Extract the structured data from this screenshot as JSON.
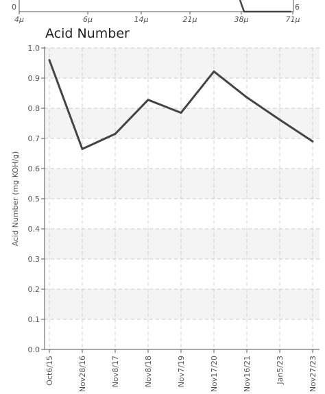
{
  "top_fragment": {
    "y_tick_label": "0",
    "right_tick_label": "6",
    "x_tick_labels": [
      "4μ",
      "6μ",
      "14μ",
      "21μ",
      "38μ",
      "71μ"
    ]
  },
  "chart_data": {
    "type": "line",
    "title": "Acid Number",
    "xlabel": "",
    "ylabel": "Acid Number (mg KOH/g)",
    "categories": [
      "Oct6/15",
      "Nov28/16",
      "Nov8/17",
      "Nov8/18",
      "Nov7/19",
      "Nov17/20",
      "Nov16/21",
      "Jan5/23",
      "Nov27/23"
    ],
    "series": [
      {
        "values": [
          0.96,
          0.665,
          0.715,
          0.828,
          0.785,
          0.922,
          0.836,
          0.762,
          0.69
        ]
      }
    ],
    "ylim": [
      0.0,
      1.0
    ],
    "yticks": [
      "0.0",
      "0.1",
      "0.2",
      "0.3",
      "0.4",
      "0.5",
      "0.6",
      "0.7",
      "0.8",
      "0.9",
      "1.0"
    ],
    "grid": true,
    "line_color": "#444444"
  }
}
